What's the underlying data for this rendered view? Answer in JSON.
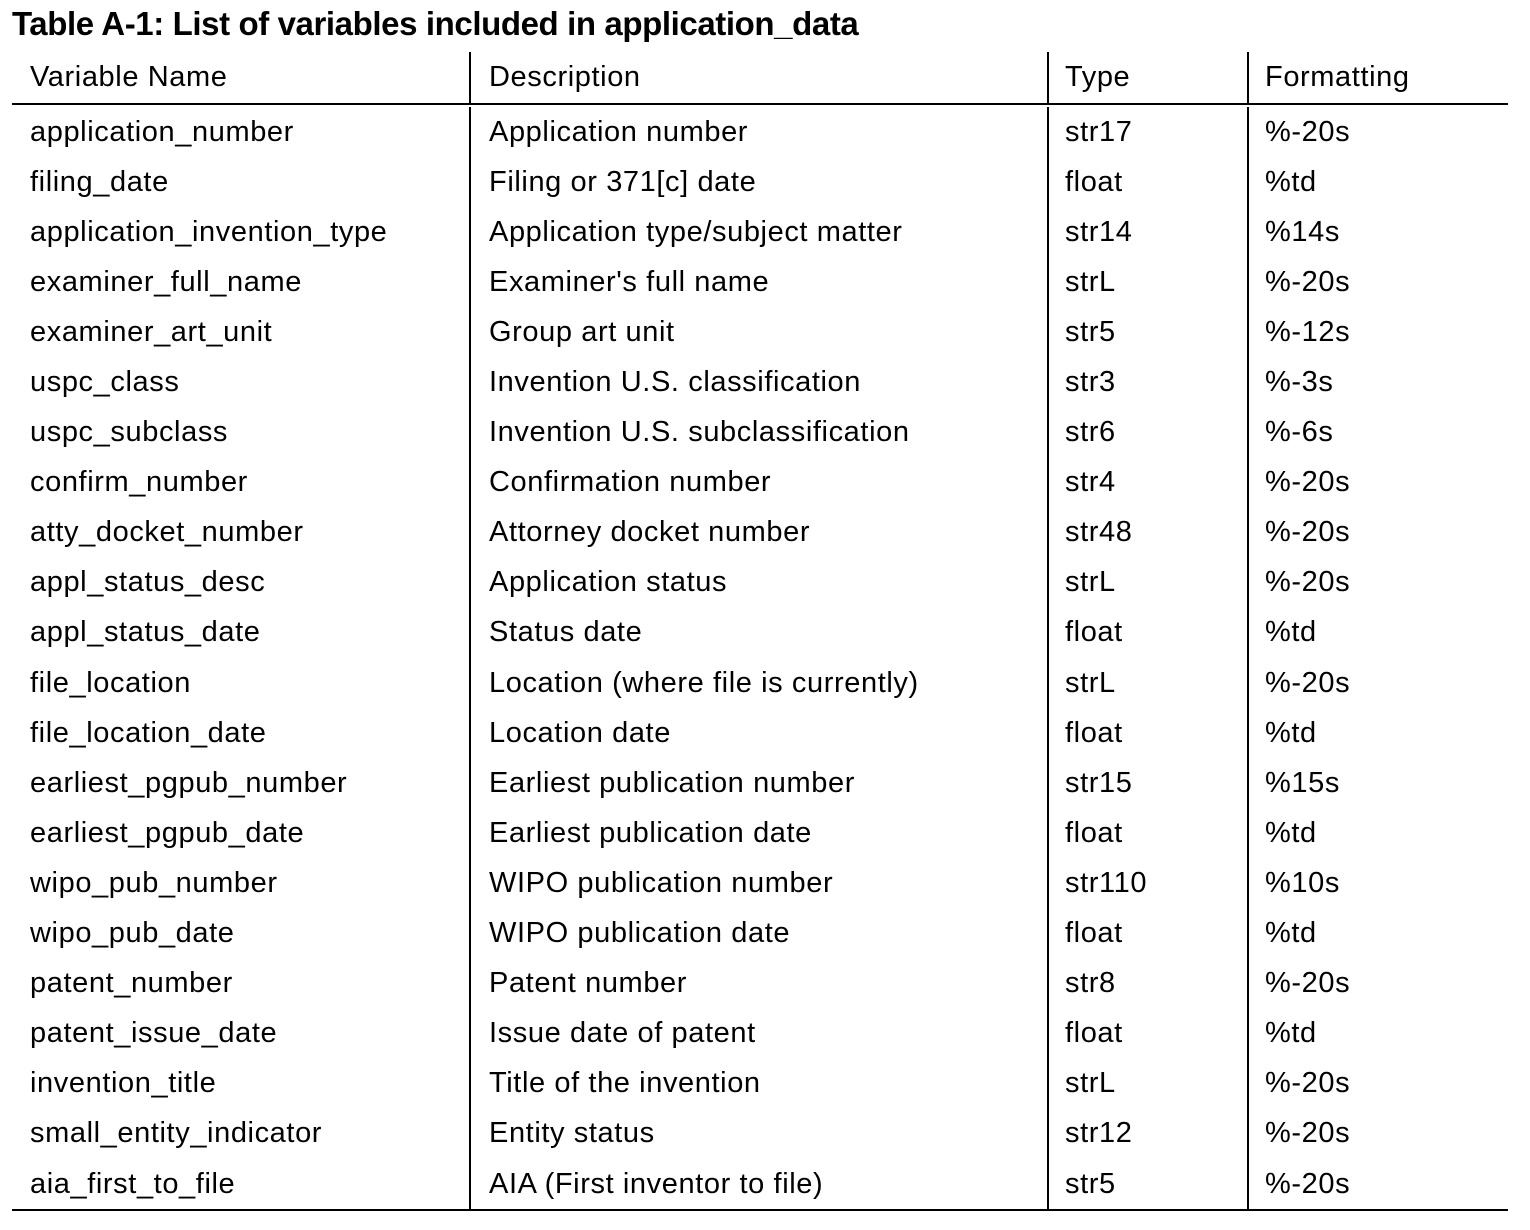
{
  "title": "Table A-1: List of variables included in application_data",
  "columns": [
    "Variable Name",
    "Description",
    "Type",
    "Formatting"
  ],
  "rows": [
    [
      "application_number",
      "Application number",
      "str17",
      "%-20s"
    ],
    [
      "filing_date",
      "Filing or 371[c] date",
      "float",
      "%td"
    ],
    [
      "application_invention_type",
      "Application type/subject matter",
      "str14",
      "%14s"
    ],
    [
      "examiner_full_name",
      "Examiner's full name",
      "strL",
      "%-20s"
    ],
    [
      "examiner_art_unit",
      "Group art unit",
      "str5",
      "%-12s"
    ],
    [
      "uspc_class",
      "Invention U.S. classification",
      "str3",
      "%-3s"
    ],
    [
      "uspc_subclass",
      "Invention U.S. subclassification",
      "str6",
      "%-6s"
    ],
    [
      "confirm_number",
      "Confirmation number",
      "str4",
      "%-20s"
    ],
    [
      "atty_docket_number",
      "Attorney docket number",
      "str48",
      "%-20s"
    ],
    [
      "appl_status_desc",
      "Application status",
      "strL",
      "%-20s"
    ],
    [
      "appl_status_date",
      "Status date",
      "float",
      "%td"
    ],
    [
      "file_location",
      "Location (where file is currently)",
      "strL",
      "%-20s"
    ],
    [
      "file_location_date",
      "Location date",
      "float",
      "%td"
    ],
    [
      "earliest_pgpub_number",
      "Earliest publication number",
      "str15",
      "%15s"
    ],
    [
      "earliest_pgpub_date",
      "Earliest publication date",
      "float",
      "%td"
    ],
    [
      "wipo_pub_number",
      "WIPO publication number",
      "str110",
      "%10s"
    ],
    [
      "wipo_pub_date",
      "WIPO publication date",
      "float",
      "%td"
    ],
    [
      "patent_number",
      "Patent number",
      "str8",
      "%-20s"
    ],
    [
      "patent_issue_date",
      "Issue date of patent",
      "float",
      "%td"
    ],
    [
      "invention_title",
      "Title of the invention",
      "strL",
      "%-20s"
    ],
    [
      "small_entity_indicator",
      "Entity status",
      "str12",
      "%-20s"
    ],
    [
      "aia_first_to_file",
      "AIA (First inventor to file)",
      "str5",
      "%-20s"
    ]
  ]
}
